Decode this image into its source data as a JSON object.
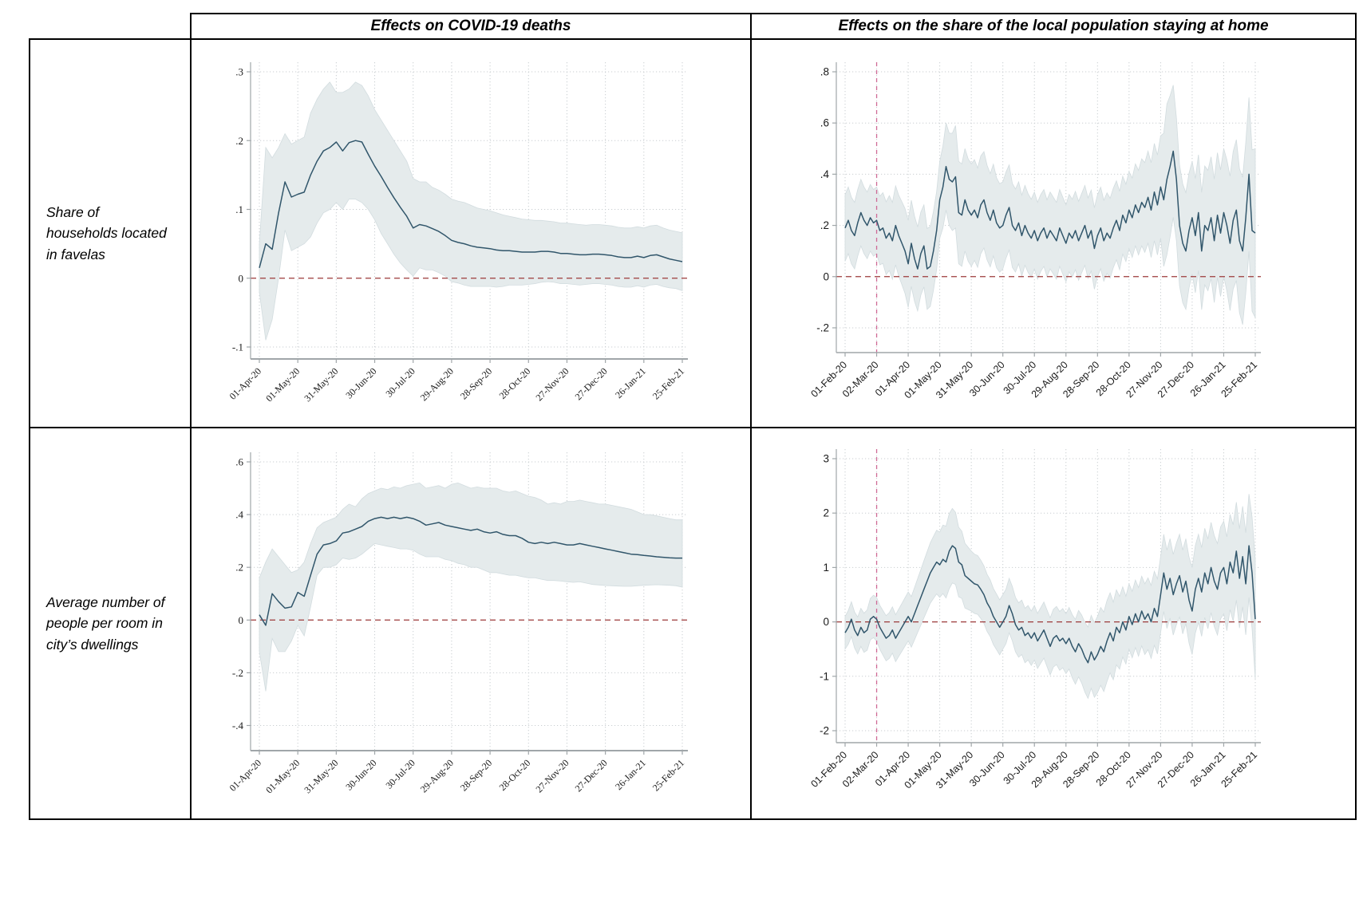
{
  "header": {
    "col2_label": "Effects on COVID-19 deaths",
    "col3_label": "Effects on the share of the local population staying at home"
  },
  "rows": [
    {
      "label": "Share of households located in favelas"
    },
    {
      "label": "Average number of people per room in city’s dwellings"
    }
  ],
  "colors": {
    "line": "#31566b",
    "band_fill": "#e5ebec",
    "band_edge": "#d2dcdf",
    "zero_line": "#9c3a3a",
    "event_line": "#cf6b96",
    "grid": "#c9ced1",
    "axis": "#a0a6a9",
    "tick_text": "#1a1a1a"
  },
  "chart_data": [
    {
      "id": "top-left",
      "type": "line",
      "row_label": "Share of households located in favelas",
      "column_label": "Effects on COVID-19 deaths",
      "tick_font": "serif",
      "x_step_days": 5,
      "x_max_day": 330,
      "x_tick_days": [
        0,
        30,
        60,
        90,
        120,
        150,
        180,
        210,
        240,
        270,
        300,
        330
      ],
      "x_tick_labels": [
        "01-Apr-20",
        "01-May-20",
        "31-May-20",
        "30-Jun-20",
        "30-Jul-20",
        "29-Aug-20",
        "28-Sep-20",
        "28-Oct-20",
        "27-Nov-20",
        "27-Dec-20",
        "26-Jan-21",
        "25-Feb-21"
      ],
      "ylim": [
        -0.1,
        0.3
      ],
      "y_ticks": [
        -0.1,
        0,
        0.1,
        0.2,
        0.3
      ],
      "y_tick_labels": [
        "-.1",
        "0",
        ".1",
        ".2",
        ".3"
      ],
      "zero_hline": true,
      "event_vline_day": null,
      "y": [
        0.015,
        0.05,
        0.042,
        0.095,
        0.14,
        0.118,
        0.122,
        0.125,
        0.15,
        0.17,
        0.185,
        0.19,
        0.198,
        0.185,
        0.197,
        0.2,
        0.198,
        0.18,
        0.163,
        0.148,
        0.132,
        0.117,
        0.103,
        0.09,
        0.073,
        0.078,
        0.076,
        0.072,
        0.068,
        0.062,
        0.055,
        0.052,
        0.05,
        0.047,
        0.045,
        0.044,
        0.043,
        0.041,
        0.04,
        0.04,
        0.039,
        0.038,
        0.038,
        0.038,
        0.039,
        0.039,
        0.038,
        0.036,
        0.036,
        0.035,
        0.034,
        0.034,
        0.035,
        0.035,
        0.034,
        0.033,
        0.031,
        0.03,
        0.03,
        0.032,
        0.03,
        0.033,
        0.034,
        0.031,
        0.028,
        0.026,
        0.024
      ],
      "ci_lo": [
        -0.02,
        -0.09,
        -0.06,
        0.0,
        0.07,
        0.04,
        0.045,
        0.05,
        0.06,
        0.08,
        0.095,
        0.1,
        0.11,
        0.1,
        0.115,
        0.115,
        0.11,
        0.1,
        0.085,
        0.065,
        0.05,
        0.035,
        0.022,
        0.012,
        0.003,
        0.015,
        0.012,
        0.012,
        0.008,
        0.003,
        -0.005,
        -0.007,
        -0.01,
        -0.012,
        -0.012,
        -0.012,
        -0.012,
        -0.013,
        -0.012,
        -0.01,
        -0.01,
        -0.01,
        -0.009,
        -0.008,
        -0.006,
        -0.005,
        -0.006,
        -0.008,
        -0.008,
        -0.009,
        -0.01,
        -0.009,
        -0.008,
        -0.008,
        -0.009,
        -0.01,
        -0.012,
        -0.013,
        -0.013,
        -0.011,
        -0.013,
        -0.01,
        -0.009,
        -0.012,
        -0.014,
        -0.015,
        -0.018
      ],
      "ci_hi": [
        0.05,
        0.19,
        0.175,
        0.19,
        0.21,
        0.195,
        0.2,
        0.205,
        0.24,
        0.26,
        0.275,
        0.285,
        0.27,
        0.27,
        0.275,
        0.285,
        0.28,
        0.265,
        0.245,
        0.23,
        0.215,
        0.2,
        0.185,
        0.17,
        0.145,
        0.14,
        0.14,
        0.132,
        0.128,
        0.122,
        0.115,
        0.112,
        0.11,
        0.106,
        0.102,
        0.1,
        0.098,
        0.095,
        0.092,
        0.09,
        0.088,
        0.086,
        0.085,
        0.084,
        0.084,
        0.083,
        0.082,
        0.08,
        0.08,
        0.079,
        0.078,
        0.077,
        0.078,
        0.078,
        0.077,
        0.076,
        0.074,
        0.073,
        0.073,
        0.075,
        0.073,
        0.076,
        0.077,
        0.073,
        0.07,
        0.068,
        0.066
      ]
    },
    {
      "id": "top-right",
      "type": "line",
      "row_label": "Share of households located in favelas",
      "column_label": "Effects on the share of the local population staying at home",
      "tick_font": "sans",
      "x_step_days": 3,
      "x_max_day": 390,
      "x_tick_days": [
        0,
        30,
        60,
        90,
        120,
        150,
        180,
        210,
        240,
        270,
        300,
        330,
        360,
        390
      ],
      "x_tick_labels": [
        "01-Feb-20",
        "02-Mar-20",
        "01-Apr-20",
        "01-May-20",
        "31-May-20",
        "30-Jun-20",
        "30-Jul-20",
        "29-Aug-20",
        "28-Sep-20",
        "28-Oct-20",
        "27-Nov-20",
        "27-Dec-20",
        "26-Jan-21",
        "25-Feb-21"
      ],
      "ylim": [
        -0.25,
        0.8
      ],
      "y_ticks": [
        -0.2,
        0,
        0.2,
        0.4,
        0.6,
        0.8
      ],
      "y_tick_labels": [
        "-.2",
        "0",
        ".2",
        ".4",
        ".6",
        ".8"
      ],
      "zero_hline": true,
      "event_vline_day": 30,
      "y": [
        0.19,
        0.22,
        0.18,
        0.16,
        0.21,
        0.25,
        0.22,
        0.2,
        0.23,
        0.21,
        0.22,
        0.18,
        0.19,
        0.15,
        0.17,
        0.14,
        0.2,
        0.16,
        0.13,
        0.1,
        0.05,
        0.13,
        0.07,
        0.03,
        0.09,
        0.12,
        0.03,
        0.04,
        0.1,
        0.18,
        0.3,
        0.35,
        0.43,
        0.38,
        0.37,
        0.39,
        0.25,
        0.24,
        0.3,
        0.26,
        0.24,
        0.26,
        0.23,
        0.28,
        0.3,
        0.25,
        0.22,
        0.26,
        0.21,
        0.19,
        0.2,
        0.24,
        0.27,
        0.2,
        0.18,
        0.21,
        0.16,
        0.2,
        0.17,
        0.15,
        0.18,
        0.14,
        0.17,
        0.19,
        0.15,
        0.18,
        0.16,
        0.14,
        0.19,
        0.16,
        0.13,
        0.17,
        0.15,
        0.18,
        0.14,
        0.17,
        0.2,
        0.15,
        0.18,
        0.11,
        0.16,
        0.19,
        0.14,
        0.17,
        0.15,
        0.19,
        0.22,
        0.18,
        0.24,
        0.21,
        0.26,
        0.23,
        0.28,
        0.25,
        0.29,
        0.27,
        0.31,
        0.26,
        0.33,
        0.28,
        0.35,
        0.3,
        0.38,
        0.43,
        0.49,
        0.38,
        0.2,
        0.13,
        0.1,
        0.18,
        0.23,
        0.16,
        0.25,
        0.1,
        0.2,
        0.18,
        0.23,
        0.14,
        0.24,
        0.17,
        0.25,
        0.2,
        0.13,
        0.22,
        0.26,
        0.14,
        0.1,
        0.23,
        0.4,
        0.18,
        0.17
      ],
      "ci_halfwidth_anchors": [
        [
          0,
          0.13
        ],
        [
          30,
          0.13
        ],
        [
          60,
          0.17
        ],
        [
          90,
          0.15
        ],
        [
          105,
          0.2
        ],
        [
          120,
          0.2
        ],
        [
          150,
          0.17
        ],
        [
          180,
          0.15
        ],
        [
          210,
          0.15
        ],
        [
          240,
          0.16
        ],
        [
          270,
          0.15
        ],
        [
          300,
          0.2
        ],
        [
          305,
          0.3
        ],
        [
          315,
          0.24
        ],
        [
          330,
          0.22
        ],
        [
          360,
          0.25
        ],
        [
          384,
          0.3
        ],
        [
          390,
          0.33
        ]
      ]
    },
    {
      "id": "bottom-left",
      "type": "line",
      "row_label": "Average number of people per room in city’s dwellings",
      "column_label": "Effects on COVID-19 deaths",
      "tick_font": "serif",
      "x_step_days": 5,
      "x_max_day": 330,
      "x_tick_days": [
        0,
        30,
        60,
        90,
        120,
        150,
        180,
        210,
        240,
        270,
        300,
        330
      ],
      "x_tick_labels": [
        "01-Apr-20",
        "01-May-20",
        "31-May-20",
        "30-Jun-20",
        "30-Jul-20",
        "29-Aug-20",
        "28-Sep-20",
        "28-Oct-20",
        "27-Nov-20",
        "27-Dec-20",
        "26-Jan-21",
        "25-Feb-21"
      ],
      "ylim": [
        -0.45,
        0.6
      ],
      "y_ticks": [
        -0.4,
        -0.2,
        0,
        0.2,
        0.4,
        0.6
      ],
      "y_tick_labels": [
        "-.4",
        "-.2",
        "0",
        ".2",
        ".4",
        ".6"
      ],
      "zero_hline": true,
      "event_vline_day": null,
      "y": [
        0.02,
        -0.02,
        0.1,
        0.07,
        0.045,
        0.05,
        0.105,
        0.09,
        0.17,
        0.25,
        0.285,
        0.29,
        0.3,
        0.33,
        0.335,
        0.345,
        0.355,
        0.375,
        0.385,
        0.39,
        0.385,
        0.39,
        0.385,
        0.39,
        0.385,
        0.375,
        0.36,
        0.365,
        0.37,
        0.36,
        0.355,
        0.35,
        0.345,
        0.34,
        0.345,
        0.335,
        0.33,
        0.335,
        0.325,
        0.32,
        0.32,
        0.31,
        0.295,
        0.29,
        0.295,
        0.29,
        0.295,
        0.29,
        0.285,
        0.285,
        0.29,
        0.285,
        0.28,
        0.275,
        0.27,
        0.265,
        0.26,
        0.255,
        0.25,
        0.248,
        0.245,
        0.243,
        0.24,
        0.238,
        0.236,
        0.235,
        0.235
      ],
      "ci_lo": [
        -0.12,
        -0.27,
        -0.07,
        -0.12,
        -0.12,
        -0.08,
        -0.02,
        -0.06,
        0.05,
        0.17,
        0.2,
        0.2,
        0.21,
        0.235,
        0.23,
        0.235,
        0.25,
        0.27,
        0.29,
        0.285,
        0.28,
        0.275,
        0.27,
        0.27,
        0.265,
        0.25,
        0.24,
        0.24,
        0.24,
        0.23,
        0.225,
        0.215,
        0.21,
        0.2,
        0.2,
        0.19,
        0.18,
        0.18,
        0.175,
        0.17,
        0.17,
        0.165,
        0.16,
        0.16,
        0.155,
        0.15,
        0.15,
        0.148,
        0.145,
        0.143,
        0.145,
        0.14,
        0.135,
        0.133,
        0.131,
        0.13,
        0.129,
        0.128,
        0.128,
        0.13,
        0.132,
        0.133,
        0.134,
        0.133,
        0.132,
        0.13,
        0.125
      ],
      "ci_hi": [
        0.16,
        0.22,
        0.27,
        0.24,
        0.21,
        0.18,
        0.19,
        0.22,
        0.29,
        0.35,
        0.37,
        0.38,
        0.39,
        0.42,
        0.44,
        0.43,
        0.46,
        0.48,
        0.49,
        0.5,
        0.495,
        0.505,
        0.5,
        0.51,
        0.515,
        0.52,
        0.5,
        0.505,
        0.51,
        0.5,
        0.515,
        0.52,
        0.51,
        0.5,
        0.505,
        0.5,
        0.5,
        0.5,
        0.49,
        0.485,
        0.49,
        0.48,
        0.47,
        0.465,
        0.455,
        0.44,
        0.445,
        0.44,
        0.45,
        0.45,
        0.455,
        0.45,
        0.445,
        0.44,
        0.44,
        0.435,
        0.43,
        0.425,
        0.42,
        0.41,
        0.4,
        0.4,
        0.395,
        0.39,
        0.385,
        0.38,
        0.38
      ]
    },
    {
      "id": "bottom-right",
      "type": "line",
      "row_label": "Average number of people per room in city’s dwellings",
      "column_label": "Effects on the share of the local population staying at home",
      "tick_font": "sans",
      "x_step_days": 3,
      "x_max_day": 390,
      "x_tick_days": [
        0,
        30,
        60,
        90,
        120,
        150,
        180,
        210,
        240,
        270,
        300,
        330,
        360,
        390
      ],
      "x_tick_labels": [
        "01-Feb-20",
        "02-Mar-20",
        "01-Apr-20",
        "01-May-20",
        "31-May-20",
        "30-Jun-20",
        "30-Jul-20",
        "29-Aug-20",
        "28-Sep-20",
        "28-Oct-20",
        "27-Nov-20",
        "27-Dec-20",
        "26-Jan-21",
        "25-Feb-21"
      ],
      "ylim": [
        -2,
        3
      ],
      "y_ticks": [
        -2,
        -1,
        0,
        1,
        2,
        3
      ],
      "y_tick_labels": [
        "-2",
        "-1",
        "0",
        "1",
        "2",
        "3"
      ],
      "zero_hline": true,
      "event_vline_day": 30,
      "y": [
        -0.2,
        -0.1,
        0.05,
        -0.15,
        -0.25,
        -0.1,
        -0.2,
        -0.15,
        0.05,
        0.1,
        0.05,
        -0.1,
        -0.2,
        -0.3,
        -0.25,
        -0.15,
        -0.3,
        -0.2,
        -0.1,
        0.0,
        0.1,
        0.0,
        0.15,
        0.3,
        0.45,
        0.6,
        0.75,
        0.9,
        1.0,
        1.1,
        1.05,
        1.15,
        1.1,
        1.3,
        1.4,
        1.35,
        1.1,
        1.05,
        0.85,
        0.8,
        0.75,
        0.7,
        0.68,
        0.6,
        0.5,
        0.35,
        0.25,
        0.1,
        0.0,
        -0.1,
        0.0,
        0.1,
        0.3,
        0.15,
        -0.05,
        -0.15,
        -0.1,
        -0.25,
        -0.2,
        -0.3,
        -0.2,
        -0.35,
        -0.25,
        -0.15,
        -0.3,
        -0.45,
        -0.3,
        -0.25,
        -0.35,
        -0.3,
        -0.4,
        -0.3,
        -0.45,
        -0.55,
        -0.4,
        -0.5,
        -0.65,
        -0.75,
        -0.55,
        -0.7,
        -0.6,
        -0.45,
        -0.55,
        -0.35,
        -0.2,
        -0.35,
        -0.1,
        -0.2,
        0.0,
        -0.15,
        0.1,
        -0.05,
        0.15,
        0.0,
        0.2,
        0.05,
        0.15,
        0.0,
        0.25,
        0.1,
        0.5,
        0.9,
        0.6,
        0.8,
        0.5,
        0.7,
        0.85,
        0.55,
        0.75,
        0.4,
        0.2,
        0.6,
        0.8,
        0.55,
        0.9,
        0.7,
        1.0,
        0.75,
        0.6,
        0.9,
        1.0,
        0.7,
        1.1,
        0.9,
        1.3,
        0.8,
        1.2,
        0.7,
        1.4,
        0.9,
        0.05
      ],
      "ci_halfwidth_anchors": [
        [
          0,
          0.3
        ],
        [
          30,
          0.4
        ],
        [
          60,
          0.45
        ],
        [
          90,
          0.6
        ],
        [
          100,
          0.7
        ],
        [
          120,
          0.55
        ],
        [
          150,
          0.5
        ],
        [
          180,
          0.5
        ],
        [
          210,
          0.55
        ],
        [
          240,
          0.7
        ],
        [
          250,
          0.75
        ],
        [
          270,
          0.6
        ],
        [
          300,
          0.7
        ],
        [
          330,
          0.8
        ],
        [
          360,
          0.85
        ],
        [
          384,
          0.95
        ],
        [
          390,
          1.1
        ]
      ]
    }
  ]
}
